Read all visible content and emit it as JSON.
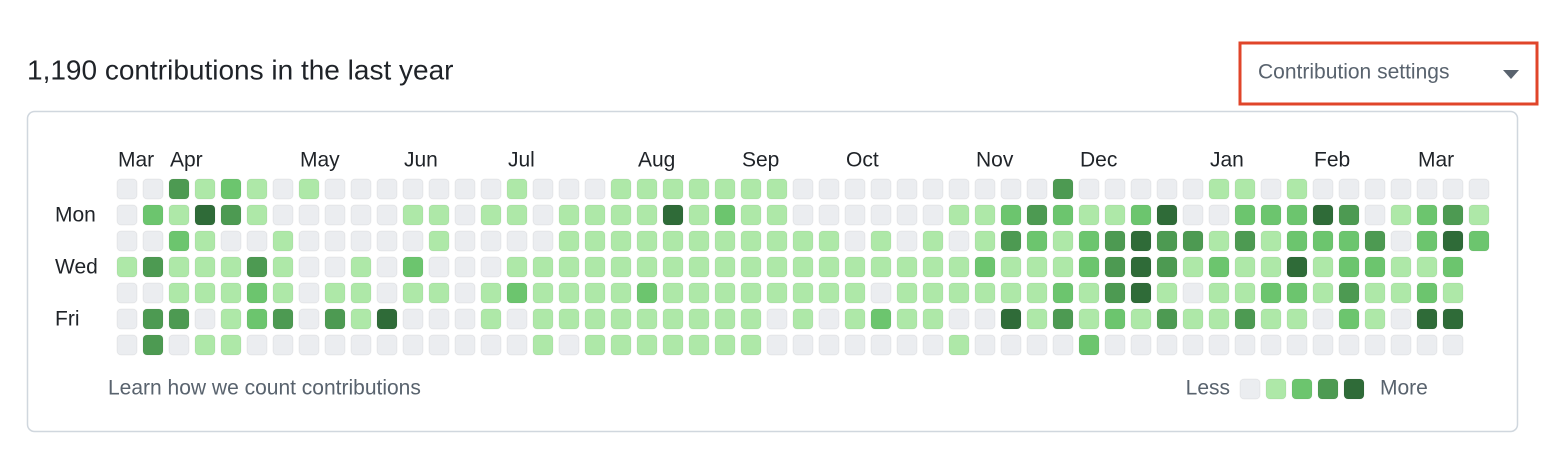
{
  "header": {
    "title": "1,190 contributions in the last year",
    "settings_button": "Contribution settings"
  },
  "calendar": {
    "month_labels": [
      "Mar",
      null,
      "Apr",
      null,
      null,
      null,
      null,
      "May",
      null,
      null,
      null,
      "Jun",
      null,
      null,
      null,
      "Jul",
      null,
      null,
      null,
      null,
      "Aug",
      null,
      null,
      null,
      "Sep",
      null,
      null,
      null,
      "Oct",
      null,
      null,
      null,
      null,
      "Nov",
      null,
      null,
      null,
      "Dec",
      null,
      null,
      null,
      null,
      "Jan",
      null,
      null,
      null,
      "Feb",
      null,
      null,
      null,
      "Mar",
      null,
      null
    ],
    "day_labels": [
      null,
      "Mon",
      null,
      "Wed",
      null,
      "Fri",
      null
    ],
    "level_colors": [
      "#ebedf0",
      "#aee8a8",
      "#6cc56e",
      "#4d9a52",
      "#2f6b38"
    ],
    "rows": [
      [
        0,
        0,
        3,
        1,
        2,
        1,
        0,
        1,
        0,
        0,
        0,
        0,
        0,
        0,
        0,
        1,
        0,
        0,
        0,
        1,
        1,
        1,
        1,
        1,
        1,
        1,
        0,
        0,
        0,
        0,
        0,
        0,
        0,
        0,
        0,
        0,
        3,
        0,
        0,
        0,
        0,
        0,
        1,
        1,
        0,
        1,
        0,
        0,
        0,
        0,
        0,
        0,
        0
      ],
      [
        0,
        2,
        1,
        4,
        3,
        1,
        0,
        0,
        0,
        0,
        0,
        1,
        1,
        0,
        1,
        1,
        0,
        1,
        1,
        1,
        1,
        4,
        1,
        2,
        1,
        1,
        0,
        0,
        0,
        0,
        0,
        0,
        1,
        1,
        2,
        3,
        2,
        1,
        1,
        2,
        4,
        0,
        0,
        2,
        2,
        2,
        4,
        3,
        0,
        1,
        2,
        3,
        1
      ],
      [
        0,
        0,
        2,
        1,
        0,
        0,
        1,
        0,
        0,
        0,
        0,
        0,
        1,
        0,
        0,
        0,
        0,
        1,
        1,
        1,
        1,
        1,
        1,
        1,
        1,
        1,
        1,
        1,
        0,
        1,
        0,
        1,
        0,
        1,
        3,
        2,
        1,
        2,
        3,
        4,
        3,
        3,
        1,
        3,
        1,
        2,
        2,
        2,
        3,
        0,
        2,
        4,
        2
      ],
      [
        1,
        3,
        1,
        1,
        1,
        3,
        1,
        0,
        0,
        1,
        0,
        2,
        0,
        0,
        0,
        1,
        1,
        1,
        1,
        1,
        1,
        1,
        1,
        1,
        1,
        1,
        1,
        1,
        1,
        1,
        1,
        1,
        1,
        2,
        1,
        1,
        1,
        2,
        3,
        4,
        3,
        1,
        2,
        1,
        1,
        4,
        1,
        2,
        2,
        1,
        1,
        2
      ],
      [
        0,
        0,
        1,
        1,
        1,
        2,
        1,
        0,
        1,
        1,
        0,
        1,
        1,
        0,
        1,
        2,
        1,
        1,
        1,
        1,
        2,
        1,
        1,
        1,
        1,
        1,
        1,
        1,
        1,
        0,
        1,
        1,
        1,
        1,
        1,
        1,
        2,
        1,
        3,
        4,
        1,
        0,
        1,
        1,
        2,
        2,
        1,
        3,
        1,
        1,
        2,
        1
      ],
      [
        0,
        3,
        3,
        0,
        1,
        2,
        3,
        0,
        3,
        1,
        4,
        0,
        0,
        0,
        1,
        0,
        1,
        1,
        1,
        1,
        1,
        1,
        1,
        1,
        1,
        0,
        1,
        0,
        1,
        2,
        1,
        1,
        0,
        0,
        4,
        1,
        3,
        1,
        2,
        1,
        3,
        1,
        1,
        3,
        1,
        1,
        0,
        2,
        1,
        0,
        4,
        4
      ],
      [
        0,
        3,
        0,
        1,
        1,
        0,
        0,
        0,
        0,
        0,
        0,
        0,
        0,
        0,
        0,
        0,
        1,
        0,
        1,
        1,
        1,
        1,
        1,
        1,
        1,
        0,
        0,
        0,
        0,
        0,
        0,
        0,
        1,
        0,
        0,
        0,
        0,
        2,
        0,
        0,
        0,
        0,
        0,
        0,
        0,
        0,
        0,
        0,
        0,
        0,
        0,
        0
      ]
    ]
  },
  "footer": {
    "learn_link": "Learn how we count contributions",
    "legend_less": "Less",
    "legend_more": "More"
  }
}
